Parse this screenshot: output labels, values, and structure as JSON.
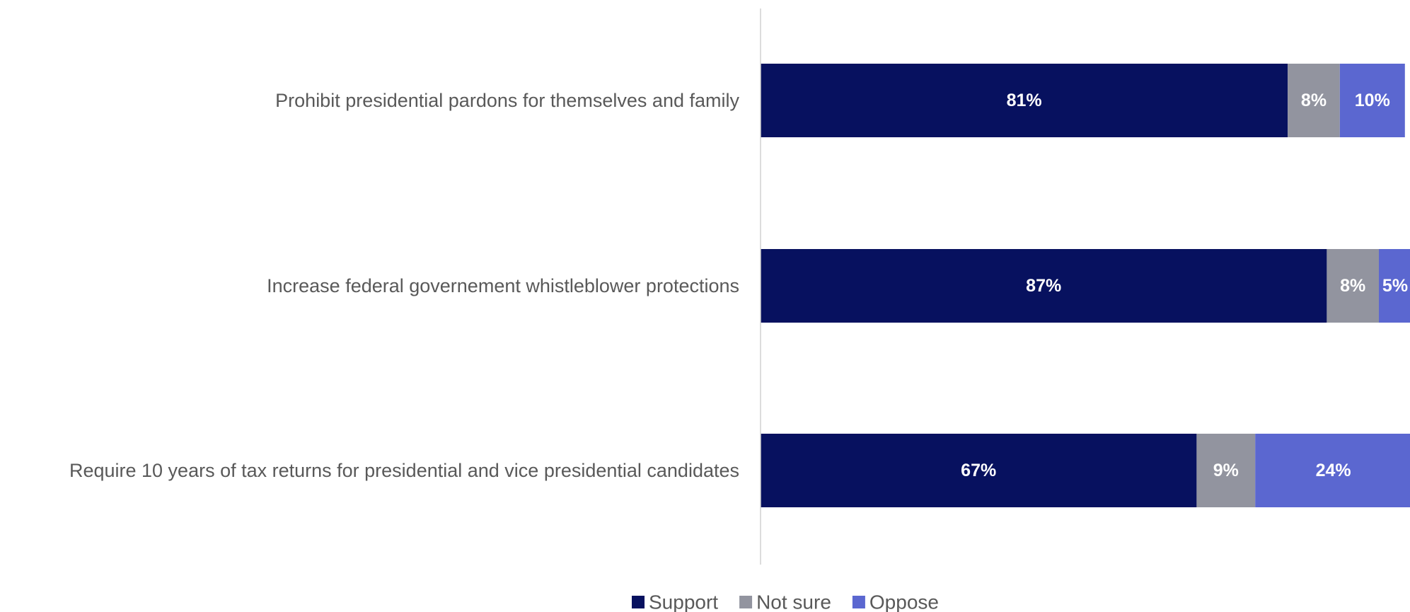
{
  "chart_data": {
    "type": "bar",
    "orientation": "horizontal",
    "stacked": true,
    "categories": [
      "Prohibit presidential pardons for themselves and family",
      "Increase federal governement whistleblower protections",
      "Require 10 years of tax returns for presidential and vice presidential candidates"
    ],
    "series": [
      {
        "name": "Support",
        "color": "#07115f",
        "values": [
          81,
          87,
          67
        ],
        "labels": [
          "81%",
          "87%",
          "67%"
        ]
      },
      {
        "name": "Not sure",
        "color": "#92949f",
        "values": [
          8,
          8,
          9
        ],
        "labels": [
          "8%",
          "8%",
          "9%"
        ]
      },
      {
        "name": "Oppose",
        "color": "#5b67d0",
        "values": [
          10,
          5,
          24
        ],
        "labels": [
          "10%",
          "5%",
          "24%"
        ]
      }
    ],
    "xlim": [
      0,
      100
    ],
    "grid": false,
    "legend": "bottom"
  }
}
